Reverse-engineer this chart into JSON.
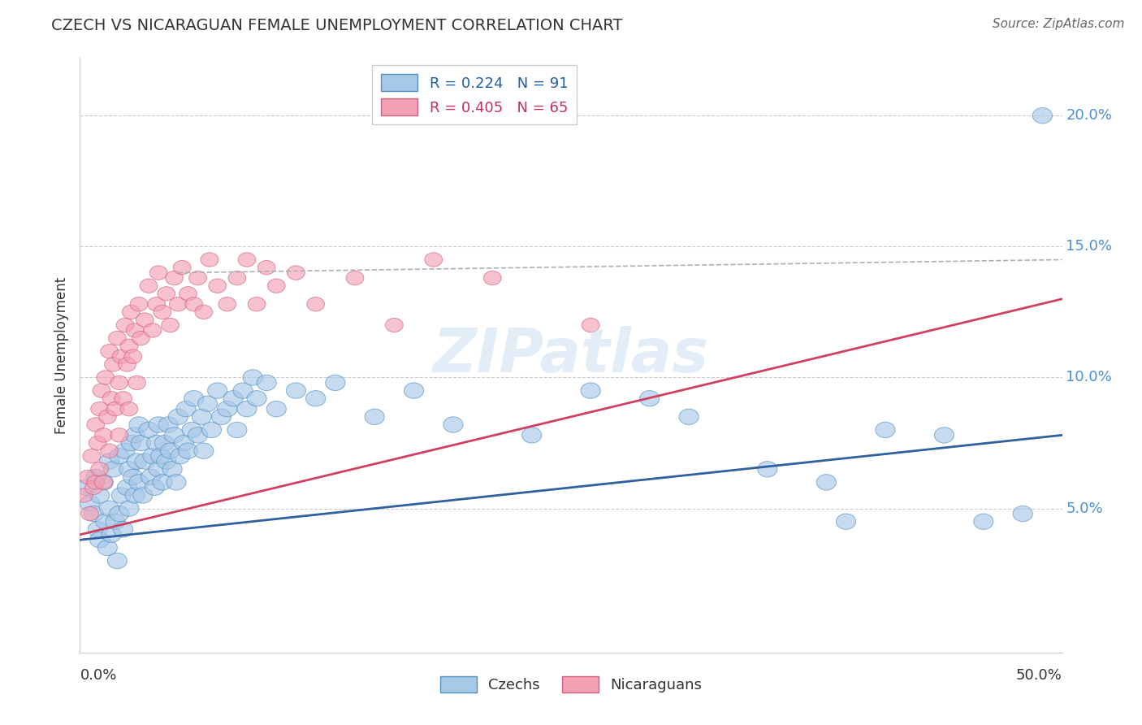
{
  "title": "CZECH VS NICARAGUAN FEMALE UNEMPLOYMENT CORRELATION CHART",
  "source": "Source: ZipAtlas.com",
  "ylabel": "Female Unemployment",
  "xlim": [
    0.0,
    0.5
  ],
  "ylim": [
    -0.005,
    0.222
  ],
  "yticks": [
    0.05,
    0.1,
    0.15,
    0.2
  ],
  "ytick_labels": [
    "5.0%",
    "10.0%",
    "15.0%",
    "20.0%"
  ],
  "legend_blue_r": "R = 0.224",
  "legend_blue_n": "N = 91",
  "legend_pink_r": "R = 0.405",
  "legend_pink_n": "N = 65",
  "legend_blue_label": "Czechs",
  "legend_pink_label": "Nicaraguans",
  "blue_color": "#a8c8e8",
  "pink_color": "#f4a0b5",
  "blue_edge_color": "#5090c0",
  "pink_edge_color": "#d06080",
  "blue_line_color": "#3060a0",
  "pink_line_color": "#d04060",
  "gray_line_color": "#b0b0b0",
  "watermark": "ZIPatlas",
  "blue_trend": [
    0.038,
    0.078
  ],
  "pink_trend": [
    0.04,
    0.13
  ],
  "gray_dashed": [
    0.14,
    0.145
  ],
  "czech_x": [
    0.003,
    0.005,
    0.007,
    0.008,
    0.009,
    0.01,
    0.01,
    0.012,
    0.013,
    0.014,
    0.015,
    0.015,
    0.016,
    0.017,
    0.018,
    0.019,
    0.02,
    0.02,
    0.021,
    0.022,
    0.023,
    0.024,
    0.025,
    0.025,
    0.026,
    0.027,
    0.028,
    0.028,
    0.029,
    0.03,
    0.03,
    0.031,
    0.032,
    0.033,
    0.035,
    0.036,
    0.037,
    0.038,
    0.039,
    0.04,
    0.04,
    0.041,
    0.042,
    0.043,
    0.044,
    0.045,
    0.046,
    0.047,
    0.048,
    0.049,
    0.05,
    0.051,
    0.053,
    0.054,
    0.055,
    0.057,
    0.058,
    0.06,
    0.062,
    0.063,
    0.065,
    0.067,
    0.07,
    0.072,
    0.075,
    0.078,
    0.08,
    0.083,
    0.085,
    0.088,
    0.09,
    0.095,
    0.1,
    0.11,
    0.12,
    0.13,
    0.15,
    0.17,
    0.19,
    0.23,
    0.26,
    0.29,
    0.31,
    0.35,
    0.38,
    0.39,
    0.41,
    0.44,
    0.46,
    0.48,
    0.49
  ],
  "czech_y": [
    0.058,
    0.052,
    0.048,
    0.062,
    0.042,
    0.055,
    0.038,
    0.06,
    0.045,
    0.035,
    0.068,
    0.05,
    0.04,
    0.065,
    0.045,
    0.03,
    0.07,
    0.048,
    0.055,
    0.042,
    0.072,
    0.058,
    0.065,
    0.05,
    0.075,
    0.062,
    0.078,
    0.055,
    0.068,
    0.082,
    0.06,
    0.075,
    0.055,
    0.068,
    0.08,
    0.062,
    0.07,
    0.058,
    0.075,
    0.082,
    0.065,
    0.07,
    0.06,
    0.075,
    0.068,
    0.082,
    0.072,
    0.065,
    0.078,
    0.06,
    0.085,
    0.07,
    0.075,
    0.088,
    0.072,
    0.08,
    0.092,
    0.078,
    0.085,
    0.072,
    0.09,
    0.08,
    0.095,
    0.085,
    0.088,
    0.092,
    0.08,
    0.095,
    0.088,
    0.1,
    0.092,
    0.098,
    0.088,
    0.095,
    0.092,
    0.098,
    0.085,
    0.095,
    0.082,
    0.078,
    0.095,
    0.092,
    0.085,
    0.065,
    0.06,
    0.045,
    0.08,
    0.078,
    0.045,
    0.048,
    0.2
  ],
  "nicaraguan_x": [
    0.002,
    0.004,
    0.005,
    0.006,
    0.007,
    0.008,
    0.008,
    0.009,
    0.01,
    0.01,
    0.011,
    0.012,
    0.012,
    0.013,
    0.014,
    0.015,
    0.015,
    0.016,
    0.017,
    0.018,
    0.019,
    0.02,
    0.02,
    0.021,
    0.022,
    0.023,
    0.024,
    0.025,
    0.025,
    0.026,
    0.027,
    0.028,
    0.029,
    0.03,
    0.031,
    0.033,
    0.035,
    0.037,
    0.039,
    0.04,
    0.042,
    0.044,
    0.046,
    0.048,
    0.05,
    0.052,
    0.055,
    0.058,
    0.06,
    0.063,
    0.066,
    0.07,
    0.075,
    0.08,
    0.085,
    0.09,
    0.095,
    0.1,
    0.11,
    0.12,
    0.14,
    0.16,
    0.18,
    0.21,
    0.26
  ],
  "nicaraguan_y": [
    0.055,
    0.062,
    0.048,
    0.07,
    0.058,
    0.082,
    0.06,
    0.075,
    0.088,
    0.065,
    0.095,
    0.078,
    0.06,
    0.1,
    0.085,
    0.11,
    0.072,
    0.092,
    0.105,
    0.088,
    0.115,
    0.098,
    0.078,
    0.108,
    0.092,
    0.12,
    0.105,
    0.112,
    0.088,
    0.125,
    0.108,
    0.118,
    0.098,
    0.128,
    0.115,
    0.122,
    0.135,
    0.118,
    0.128,
    0.14,
    0.125,
    0.132,
    0.12,
    0.138,
    0.128,
    0.142,
    0.132,
    0.128,
    0.138,
    0.125,
    0.145,
    0.135,
    0.128,
    0.138,
    0.145,
    0.128,
    0.142,
    0.135,
    0.14,
    0.128,
    0.138,
    0.12,
    0.145,
    0.138,
    0.12
  ]
}
